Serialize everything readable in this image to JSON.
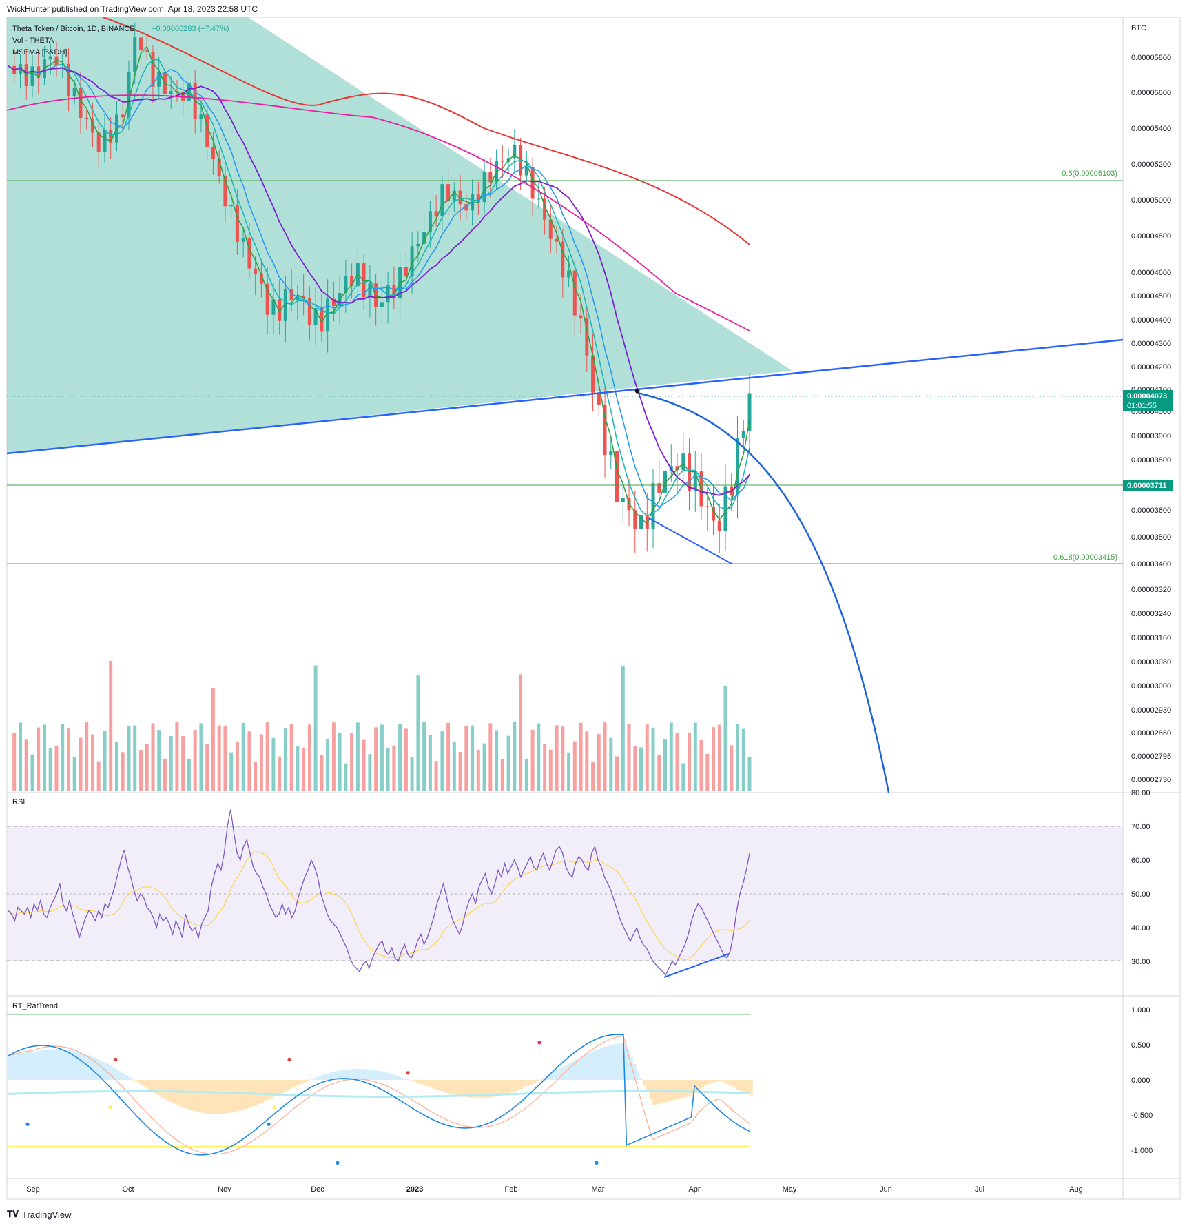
{
  "header": {
    "text": "WickHunter published on TradingView.com, Apr 18, 2023 22:58 UTC"
  },
  "footer": {
    "brand": "TradingView"
  },
  "legend": {
    "symbol": "Theta Token / Bitcoin, 1D, BINANCE",
    "change": "+0.00000283 (+7.47%)",
    "line2": "Vol · THETA",
    "line3": "MSEMA [B&DH]"
  },
  "price_axis": {
    "unit": "BTC",
    "ticks": [
      "0.00005800",
      "0.00005600",
      "0.00005400",
      "0.00005200",
      "0.00005000",
      "0.00004800",
      "0.00004600",
      "0.00004500",
      "0.00004400",
      "0.00004300",
      "0.00004200",
      "0.00004100",
      "0.00004000",
      "0.00003900",
      "0.00003800",
      "0.00003600",
      "0.00003500",
      "0.00003400",
      "0.00003320",
      "0.00003240",
      "0.00003160",
      "0.00003080",
      "0.00003000",
      "0.00002930",
      "0.00002860",
      "0.00002795",
      "0.00002730"
    ],
    "last_price": "0.00004073",
    "countdown": "01:01:55",
    "level_label": "0.00003711"
  },
  "fib": {
    "level_05": "0.5(0.00005103)",
    "level_0618": "0.618(0.00003415)"
  },
  "time_axis": [
    "Sep",
    "Oct",
    "Nov",
    "Dec",
    "2023",
    "Feb",
    "Mar",
    "Apr",
    "May",
    "Jun",
    "Jul",
    "Aug"
  ],
  "rsi": {
    "title": "RSI",
    "ticks": [
      "80.00",
      "70.00",
      "60.00",
      "50.00",
      "40.00",
      "30.00"
    ],
    "ylim": [
      20,
      80
    ],
    "values": [
      45,
      44,
      42,
      46,
      45,
      44,
      46,
      43,
      47,
      45,
      48,
      44,
      43,
      46,
      48,
      50,
      53,
      47,
      45,
      48,
      44,
      41,
      37,
      40,
      43,
      45,
      44,
      42,
      45,
      43,
      47,
      46,
      49,
      52,
      56,
      60,
      63,
      58,
      55,
      51,
      48,
      50,
      49,
      46,
      45,
      43,
      40,
      44,
      42,
      43,
      41,
      38,
      42,
      40,
      37,
      44,
      41,
      39,
      40,
      37,
      41,
      43,
      45,
      52,
      56,
      59,
      57,
      62,
      70,
      75,
      68,
      62,
      60,
      64,
      66,
      62,
      58,
      56,
      55,
      52,
      50,
      47,
      45,
      43,
      44,
      47,
      44,
      46,
      43,
      45,
      49,
      52,
      55,
      57,
      60,
      58,
      55,
      50,
      47,
      44,
      42,
      41,
      40,
      38,
      36,
      34,
      31,
      29,
      28,
      27,
      29,
      30,
      28,
      31,
      33,
      35,
      36,
      33,
      32,
      34,
      31,
      30,
      33,
      35,
      32,
      31,
      33,
      36,
      38,
      35,
      37,
      40,
      43,
      47,
      50,
      53,
      49,
      45,
      42,
      40,
      38,
      41,
      45,
      48,
      50,
      47,
      52,
      54,
      56,
      52,
      50,
      53,
      57,
      55,
      59,
      56,
      58,
      60,
      58,
      55,
      57,
      59,
      61,
      58,
      57,
      60,
      62,
      59,
      57,
      60,
      63,
      64,
      62,
      58,
      56,
      55,
      59,
      61,
      60,
      58,
      57,
      62,
      64,
      60,
      58,
      55,
      53,
      51,
      48,
      45,
      42,
      40,
      38,
      36,
      38,
      40,
      37,
      35,
      34,
      32,
      30,
      29,
      28,
      27,
      26,
      28,
      30,
      29,
      31,
      33,
      35,
      38,
      42,
      45,
      47,
      46,
      44,
      42,
      40,
      38,
      36,
      34,
      32,
      31,
      33,
      38,
      45,
      50,
      53,
      57,
      62
    ]
  },
  "ratrend": {
    "title": "RT_RatTrend",
    "ticks": [
      "1.000",
      "0.500",
      "0.000",
      "-0.500",
      "-1.000"
    ],
    "ylim": [
      -1.25,
      1.25
    ]
  },
  "colors": {
    "up": "#26a69a",
    "down": "#ef5350",
    "ema_fast": "#2e9e3e",
    "ema_mid": "#17b6b0",
    "ema_slow": "#2196f3",
    "sma_purple": "#7b1fd2",
    "sma_magenta": "#e91e9e",
    "sma_red": "#e53935",
    "triangle": "#9ed8cf",
    "trend_line": "#2962ff",
    "rsi_line": "#7e57c2",
    "rsi_ma": "#ffd54f",
    "rsi_band": "#ede7f6"
  }
}
